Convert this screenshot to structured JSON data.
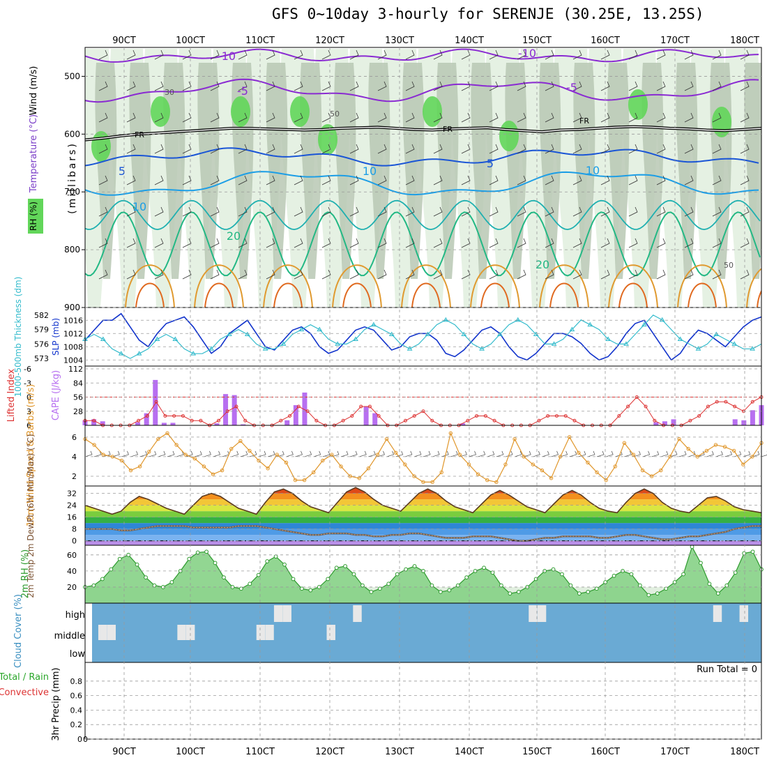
{
  "title": "GFS 0~10day 3-hourly for SERENJE (30.25E, 13.25S)",
  "colors": {
    "grid": "#9a9a9a",
    "rh_light": "#e2efe0",
    "rh_mid": "#b8c8b4",
    "rh_dark": "#7f9a7f",
    "rh_sat": "#62d65a",
    "temp_minus10": "#8a2ad2",
    "temp_5": "#1a55d6",
    "temp_10": "#1c9ee6",
    "temp_20": "#22b884",
    "temp_warm": "#e09a30",
    "slp": "#1133cc",
    "thickness": "#33bbcc",
    "cape": "#b76ff0",
    "lifted_index": "#dd3333",
    "wind_speed": "#e0962a",
    "cloud": "#6aaad4",
    "rh2m": "#2e9a2e"
  },
  "chart_data": [
    {
      "panel": "upper-air",
      "type": "heatmap",
      "xlabels": [
        "90CT",
        "100CT",
        "110CT",
        "120CT",
        "130CT",
        "140CT",
        "150CT",
        "160CT",
        "170CT",
        "180CT"
      ],
      "ylabel_left": [
        "Wind (m/s)",
        "Temperature (°C)",
        "RH (%)"
      ],
      "ylabel_axis": "(millibars)",
      "yticks": [
        500,
        600,
        700,
        800,
        900
      ],
      "ylim": [
        900,
        450
      ],
      "contour_labels": [
        "-10",
        "-10",
        "-5",
        "-5",
        "FR",
        "FR",
        "FR",
        "5",
        "5",
        "10",
        "10",
        "10",
        "20",
        "20",
        "50",
        "50",
        "30"
      ],
      "freezing_level_mb": [
        610,
        607,
        603,
        600,
        598,
        596,
        594,
        592,
        590,
        590,
        591,
        592,
        593,
        592,
        590,
        589,
        588,
        590,
        592,
        593,
        591,
        590,
        589,
        592,
        594,
        596,
        593,
        592,
        590,
        588,
        587,
        588,
        590,
        591,
        593,
        594,
        592,
        590
      ]
    },
    {
      "panel": "slp-thickness",
      "type": "line",
      "ylabel_left": "1000-500mb Thickness (dm)",
      "ylabel_right": "SLP (mb)",
      "yticks_left": [
        573,
        576,
        579,
        582
      ],
      "yticks_right": [
        1004,
        1008,
        1012,
        1016
      ],
      "series": [
        {
          "name": "SLP (mb)",
          "values": [
            1010,
            1013,
            1016,
            1016,
            1018,
            1014,
            1010,
            1008,
            1012,
            1015,
            1016,
            1017,
            1014,
            1010,
            1006,
            1008,
            1012,
            1014,
            1016,
            1012,
            1008,
            1007,
            1010,
            1013,
            1014,
            1012,
            1008,
            1006,
            1007,
            1010,
            1013,
            1014,
            1013,
            1010,
            1007,
            1008,
            1011,
            1012,
            1012,
            1010,
            1006,
            1005,
            1007,
            1010,
            1013,
            1014,
            1012,
            1008,
            1005,
            1004,
            1006,
            1009,
            1012,
            1012,
            1011,
            1009,
            1006,
            1004,
            1005,
            1008,
            1012,
            1015,
            1016,
            1012,
            1008,
            1004,
            1006,
            1010,
            1013,
            1012,
            1010,
            1008,
            1011,
            1014,
            1016,
            1017
          ]
        },
        {
          "name": "Thickness (dm)",
          "values": [
            577,
            578,
            577,
            575,
            574,
            573,
            574,
            575,
            577,
            578,
            577,
            575,
            574,
            574,
            575,
            577,
            578,
            579,
            578,
            576,
            575,
            575,
            576,
            578,
            579,
            580,
            579,
            577,
            576,
            576,
            577,
            579,
            580,
            579,
            578,
            576,
            575,
            576,
            578,
            580,
            581,
            580,
            578,
            576,
            575,
            576,
            578,
            580,
            581,
            580,
            578,
            576,
            576,
            577,
            579,
            581,
            580,
            579,
            577,
            576,
            576,
            578,
            580,
            582,
            581,
            579,
            577,
            576,
            575,
            576,
            578,
            577,
            576,
            575,
            575,
            576
          ]
        }
      ]
    },
    {
      "panel": "cape-li",
      "type": "bar",
      "ylabel_left": "Lifted Index",
      "ylabel_right": "CAPE (J/kg)",
      "yticks_left": [
        -6,
        -3,
        0,
        3,
        6
      ],
      "yticks_right": [
        28,
        56,
        84,
        112
      ],
      "series": [
        {
          "name": "CAPE (J/kg)",
          "values": [
            10,
            12,
            8,
            0,
            0,
            0,
            6,
            24,
            90,
            5,
            5,
            0,
            0,
            0,
            0,
            4,
            62,
            60,
            2,
            0,
            0,
            0,
            0,
            10,
            40,
            65,
            0,
            0,
            0,
            0,
            0,
            0,
            38,
            24,
            0,
            0,
            0,
            0,
            0,
            0,
            0,
            0,
            0,
            4,
            0,
            0,
            0,
            0,
            0,
            0,
            0,
            0,
            0,
            0,
            0,
            0,
            0,
            0,
            0,
            0,
            0,
            0,
            0,
            0,
            0,
            6,
            8,
            12,
            0,
            0,
            0,
            0,
            0,
            0,
            12,
            10,
            30,
            40
          ]
        },
        {
          "name": "Lifted Index",
          "values": [
            5,
            5,
            6,
            6,
            6,
            6,
            5,
            4,
            1,
            4,
            4,
            4,
            5,
            5,
            6,
            5,
            3,
            2,
            5,
            6,
            6,
            6,
            5,
            4,
            2,
            3,
            5,
            6,
            6,
            5,
            4,
            2,
            2,
            4,
            6,
            6,
            5,
            4,
            3,
            5,
            6,
            6,
            6,
            5,
            4,
            4,
            5,
            6,
            6,
            6,
            6,
            5,
            4,
            4,
            4,
            5,
            6,
            6,
            6,
            6,
            4,
            2,
            0,
            2,
            5,
            6,
            6,
            6,
            5,
            4,
            2,
            1,
            1,
            2,
            3,
            1,
            0
          ]
        }
      ]
    },
    {
      "panel": "wind10m",
      "type": "line",
      "ylabel_left": "10m Wind Speed & Barbs (m/s)",
      "yticks_left": [
        2,
        4,
        6
      ],
      "series": [
        {
          "name": "Wind Speed (m/s)",
          "values": [
            5.8,
            5.2,
            4.2,
            4.0,
            3.6,
            2.6,
            3.0,
            4.5,
            5.8,
            6.4,
            5.2,
            4.2,
            3.8,
            3.0,
            2.2,
            2.6,
            4.8,
            5.6,
            4.6,
            3.6,
            2.8,
            4.2,
            3.4,
            1.6,
            1.6,
            2.4,
            3.6,
            4.2,
            3.0,
            2.0,
            1.8,
            2.8,
            4.2,
            5.8,
            4.4,
            3.2,
            2.0,
            1.4,
            1.4,
            2.4,
            6.4,
            4.2,
            3.2,
            2.2,
            1.6,
            1.4,
            3.2,
            5.8,
            4.0,
            3.2,
            2.6,
            1.8,
            4.0,
            6.0,
            4.4,
            3.4,
            2.4,
            1.6,
            3.0,
            5.4,
            4.2,
            2.6,
            2.0,
            2.6,
            4.0,
            5.8,
            4.8,
            4.0,
            4.6,
            5.2,
            5.0,
            4.6,
            3.2,
            4.0,
            5.4
          ]
        }
      ]
    },
    {
      "panel": "temp2m",
      "type": "area",
      "ylabel_left": "2m Temp 2m DewPt (6hr Min/Max) (°C)",
      "yticks_left": [
        0,
        8,
        16,
        24,
        32
      ],
      "series": [
        {
          "name": "2m Temp (°C)",
          "values": [
            24,
            22,
            20,
            18,
            20,
            26,
            30,
            28,
            25,
            22,
            20,
            18,
            24,
            30,
            32,
            30,
            26,
            22,
            20,
            18,
            26,
            33,
            35,
            32,
            27,
            23,
            21,
            19,
            26,
            33,
            36,
            33,
            28,
            24,
            22,
            20,
            26,
            32,
            35,
            32,
            27,
            23,
            21,
            19,
            25,
            31,
            34,
            31,
            27,
            23,
            21,
            19,
            25,
            31,
            34,
            31,
            26,
            22,
            20,
            19,
            26,
            32,
            35,
            32,
            26,
            22,
            20,
            19,
            24,
            29,
            30,
            27,
            23,
            21,
            20,
            19
          ]
        },
        {
          "name": "2m DewPt (°C)",
          "values": [
            8,
            8,
            8,
            8,
            7,
            7,
            8,
            9,
            10,
            10,
            10,
            10,
            9,
            9,
            9,
            9,
            9,
            10,
            10,
            10,
            9,
            8,
            7,
            6,
            5,
            4,
            4,
            5,
            5,
            5,
            4,
            4,
            3,
            3,
            4,
            4,
            5,
            5,
            4,
            3,
            2,
            2,
            2,
            3,
            3,
            3,
            2,
            1,
            0,
            0,
            1,
            2,
            2,
            3,
            3,
            3,
            3,
            2,
            2,
            3,
            4,
            4,
            3,
            2,
            1,
            1,
            2,
            3,
            3,
            4,
            5,
            6,
            8,
            9,
            10,
            10
          ]
        }
      ]
    },
    {
      "panel": "rh2m",
      "type": "area",
      "ylabel_left": "2m RH (%)",
      "yticks_left": [
        20,
        40,
        60
      ],
      "series": [
        {
          "name": "2m RH (%)",
          "values": [
            20,
            22,
            30,
            42,
            55,
            60,
            48,
            32,
            22,
            20,
            26,
            40,
            55,
            63,
            64,
            50,
            32,
            20,
            18,
            24,
            35,
            52,
            58,
            48,
            30,
            18,
            16,
            20,
            30,
            44,
            46,
            36,
            22,
            14,
            18,
            24,
            36,
            42,
            46,
            40,
            22,
            14,
            16,
            22,
            32,
            40,
            44,
            38,
            22,
            12,
            14,
            20,
            30,
            40,
            42,
            36,
            22,
            12,
            14,
            18,
            26,
            34,
            40,
            36,
            22,
            10,
            12,
            18,
            26,
            36,
            70,
            50,
            24,
            12,
            22,
            38,
            62,
            64,
            42
          ]
        }
      ]
    },
    {
      "panel": "cloud",
      "type": "bar",
      "ylabel_left": "Cloud Cover (%)",
      "yticks_left": [
        "low",
        "middle",
        "high"
      ],
      "series": [
        {
          "name": "middle",
          "values": [
            0,
            0,
            1,
            1,
            0,
            0,
            0,
            0,
            0,
            0,
            0,
            1,
            1,
            0,
            0,
            0,
            0,
            0,
            0,
            0,
            1,
            1,
            0,
            0,
            0,
            0,
            0,
            0,
            1,
            0,
            0,
            0,
            0,
            0,
            0,
            0,
            0,
            0,
            0,
            0,
            0,
            0,
            0,
            0,
            0,
            0,
            0,
            0,
            0,
            0,
            0,
            0,
            0,
            0,
            0,
            0,
            0,
            0,
            0,
            0,
            0,
            0,
            0,
            0,
            0,
            0,
            0,
            0,
            0,
            0,
            0,
            0,
            0,
            0,
            0,
            0,
            0,
            0
          ]
        },
        {
          "name": "high",
          "values": [
            0,
            0,
            0,
            0,
            0,
            0,
            0,
            0,
            0,
            0,
            0,
            0,
            0,
            0,
            0,
            0,
            0,
            0,
            0,
            0,
            0,
            0,
            1,
            1,
            0,
            0,
            0,
            0,
            0,
            0,
            0,
            1,
            0,
            0,
            0,
            0,
            0,
            0,
            0,
            0,
            0,
            0,
            0,
            0,
            0,
            0,
            0,
            0,
            0,
            0,
            0,
            1,
            1,
            0,
            0,
            0,
            0,
            0,
            0,
            0,
            0,
            0,
            0,
            0,
            0,
            0,
            0,
            0,
            0,
            0,
            0,
            0,
            1,
            0,
            0,
            1,
            0,
            0
          ]
        }
      ]
    },
    {
      "panel": "precip",
      "type": "bar",
      "ylabel_left": "3hr Precip (mm)",
      "ylabel_extra": [
        "Total / Rain",
        "Convective"
      ],
      "yticks_left": [
        0,
        0.2,
        0.4,
        0.6,
        0.8
      ],
      "ylim": [
        0,
        1
      ],
      "run_total_label": "Run Total = 0",
      "series": [
        {
          "name": "Total",
          "values": [
            0,
            0,
            0,
            0,
            0,
            0,
            0,
            0,
            0,
            0
          ]
        }
      ]
    }
  ]
}
